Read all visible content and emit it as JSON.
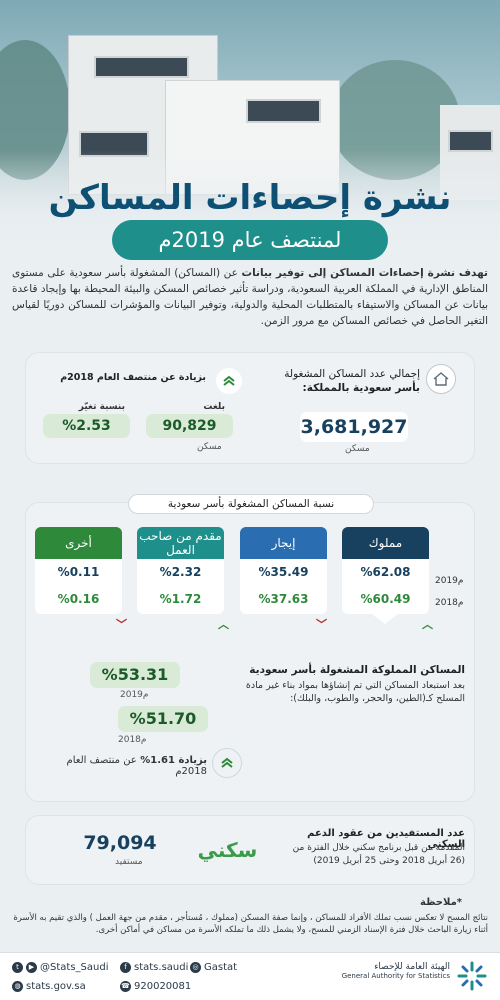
{
  "header": {
    "title": "نشرة إحصاءات المساكن",
    "subtitle": "لمنتصف عام 2019م"
  },
  "intro": {
    "lead": "تهدف نشرة إحصاءات المساكن إلى توفير بيانات",
    "body": " عن (المساكن) المشغولة بأسر سعودية على مستوى المناطق الإدارية في المملكة العربية السعودية، ودراسة تأثير خصائص المسكن والبيئة المحيطة بها وإيجاد قاعدة بيانات عن المساكن والاستيفاء بالمتطلبات المحلية والدولية، وتوفير البيانات والمؤشرات للمساكن دوريًا لقياس التغير الحاصل في خصائص المساكن مع مرور الزمن."
  },
  "total": {
    "label_line1": "إجمالي عدد المساكن المشغولة",
    "label_line2": "بأسر سعودية بالمملكة:",
    "value": "3,681,927",
    "unit": "مسكن",
    "increase_label": "بزيادة عن منتصف العام 2018م",
    "amount_label": "بلغت",
    "amount_value": "90,829",
    "amount_unit": "مسكن",
    "rate_label": "بنسبة تغيّر",
    "rate_value": "%2.53"
  },
  "tenure": {
    "section_label": "نسبة المساكن المشغولة بأسر سعودية",
    "year_2019": "2019م",
    "year_2018": "2018م",
    "columns": [
      {
        "label": "مملوك",
        "v2019": "%62.08",
        "v2018": "%60.49",
        "trend": "up",
        "color": "#17415f"
      },
      {
        "label": "إيجار",
        "v2019": "%35.49",
        "v2018": "%37.63",
        "trend": "down",
        "color": "#2a6db1"
      },
      {
        "label": "مقدم من صاحب العمل",
        "v2019": "%2.32",
        "v2018": "%1.72",
        "trend": "up",
        "color": "#1e8f8a"
      },
      {
        "label": "أخرى",
        "v2019": "%0.11",
        "v2018": "%0.16",
        "trend": "down",
        "color": "#2e8a3a"
      }
    ]
  },
  "owned": {
    "title": "المساكن المملوكة المشغولة بأسر سعودية",
    "desc": "بعد استبعاد المساكن التي تم إنشاؤها بمواد بناء غير مادة المسلح كـ(الطين، والحجر، والطوب، والبلك):",
    "v2019": "%53.31",
    "label_2019": "2019م",
    "v2018": "%51.70",
    "label_2018": "2018م",
    "increase_prefix": "بزيادة",
    "increase_value": "1.61%",
    "increase_suffix": "عن منتصف العام 2018م"
  },
  "sakani": {
    "title": "عدد المستفيدين من عقود الدعم السكني",
    "desc": "المقدمة من قبل برنامج سكني خلال الفترة من (26 أبريل 2018 وحتى 25 أبريل 2019)",
    "logo_text": "سكني",
    "value": "79,094",
    "unit": "مستفيد"
  },
  "note": {
    "title": "*ملاحظة",
    "text": "نتائج المسح لا تعكس نسب تملك الأفراد للمساكن ، وإنما صفة المسكن (مملوك ، مُستأجر ، مقدم من جهة العمل ) والذي تقيم به الأسرة أثناء زيارة الباحث خلال فترة الإسناد الزمني للمسح، ولا يشمل ذلك ما تملكه الأسرة من مساكن في أماكن أخرى."
  },
  "footer": {
    "twitter": "@Stats_Saudi",
    "facebook": "stats.saudi",
    "instagram": "Gastat",
    "website": "stats.gov.sa",
    "phone": "920020081",
    "org_ar": "الهيئة العامة للإحصاء",
    "org_en": "General Authority for Statistics"
  },
  "colors": {
    "navy": "#17415f",
    "blue": "#2a6db1",
    "teal": "#1e8f8a",
    "green": "#2e8a3a",
    "up_green": "#2e8a3a",
    "down_red": "#b3262d"
  }
}
